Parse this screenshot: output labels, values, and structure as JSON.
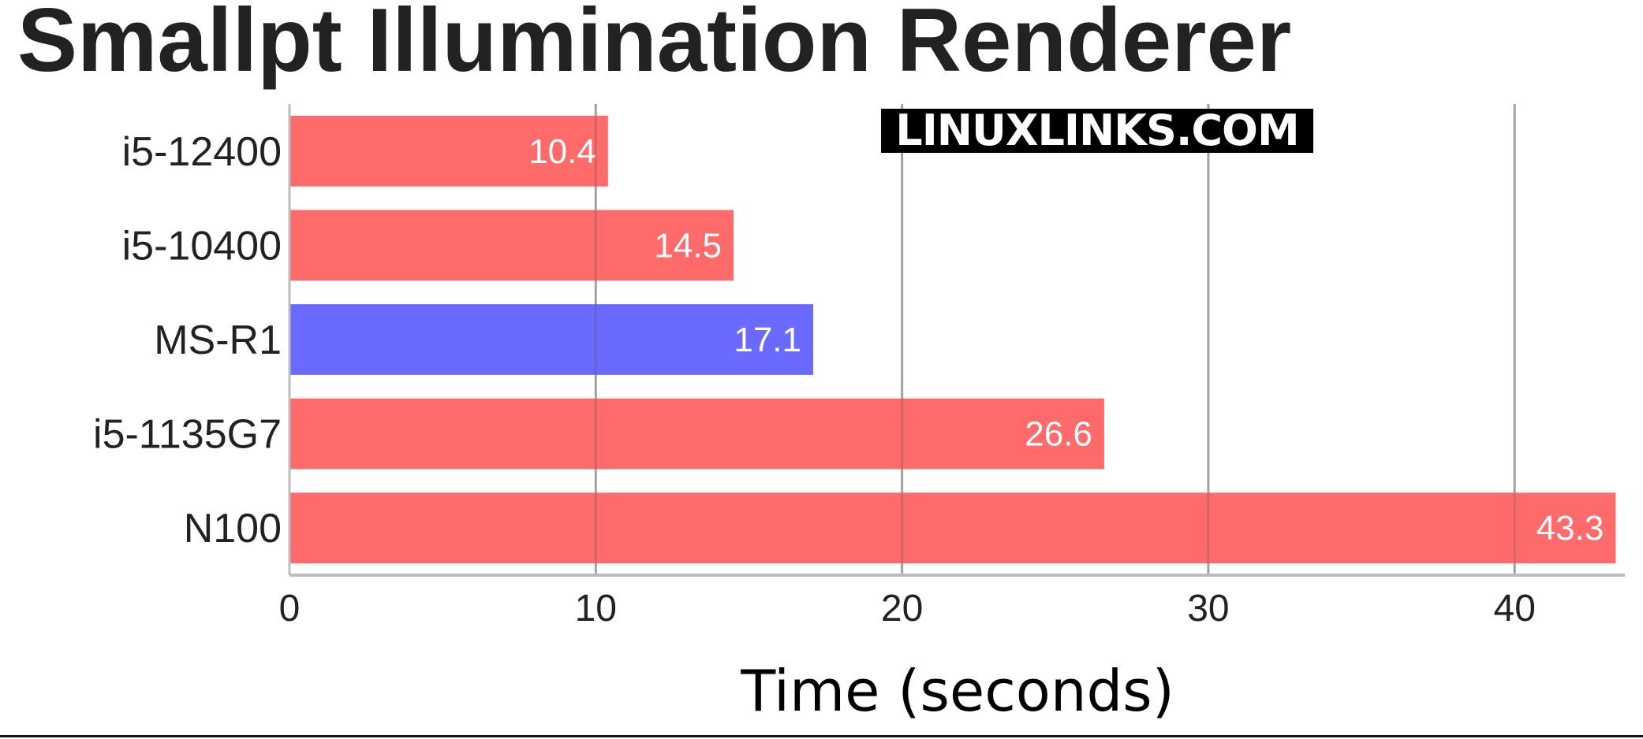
{
  "title": "Smallpt Illumination Renderer",
  "watermark": "LINUXLINKS.COM",
  "colors": {
    "highlight": "#6a6aff",
    "default": "#ff6a6a",
    "grid": "#bdbdbd",
    "axis": "#bdbdbd",
    "tick_text": "#222222",
    "value_label": "#ffffff"
  },
  "chart_data": {
    "type": "bar",
    "orientation": "horizontal",
    "title": "Smallpt Illumination Renderer",
    "xlabel": "Time (seconds)",
    "ylabel": "",
    "xlim": [
      0,
      43.6
    ],
    "xticks": [
      0,
      10,
      20,
      30,
      40
    ],
    "grid": "vertical",
    "categories": [
      "i5-12400",
      "i5-10400",
      "MS-R1",
      "i5-1135G7",
      "N100"
    ],
    "values": [
      10.4,
      14.5,
      17.1,
      26.6,
      43.3
    ],
    "value_labels": [
      "10.4",
      "14.5",
      "17.1",
      "26.6",
      "43.3"
    ],
    "highlighted_category": "MS-R1"
  }
}
